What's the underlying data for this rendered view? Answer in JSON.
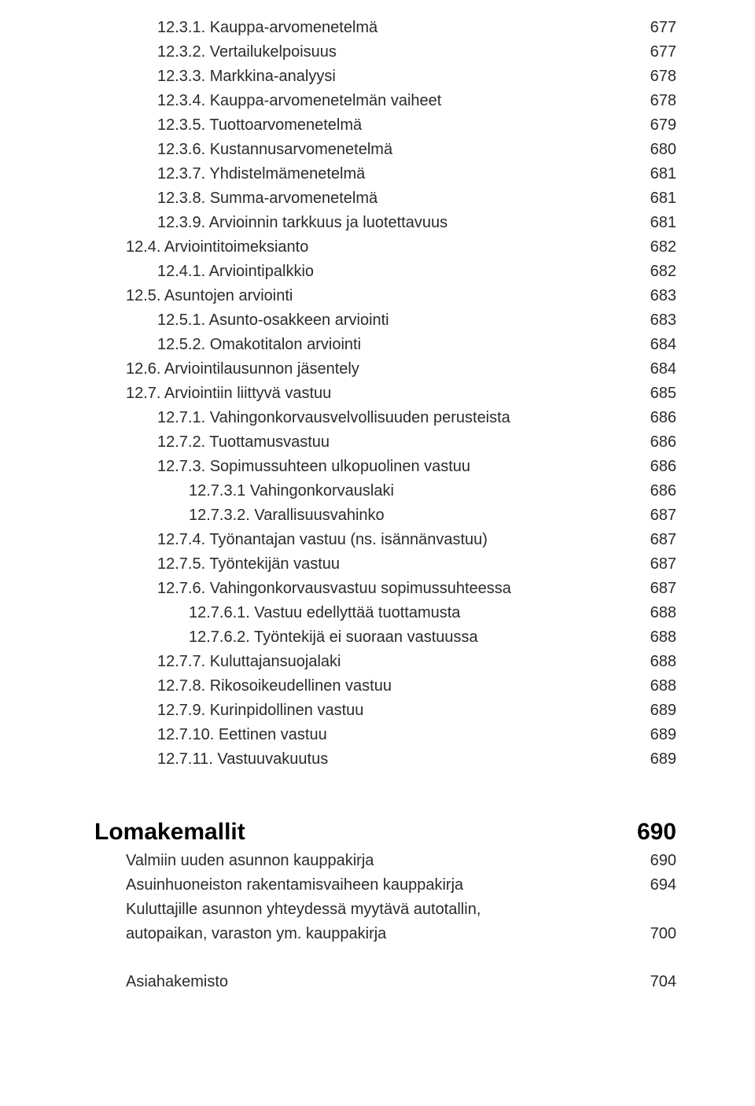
{
  "toc": [
    {
      "indent": 2,
      "label": "12.3.1. Kauppa-arvomenetelmä",
      "page": "677"
    },
    {
      "indent": 2,
      "label": "12.3.2. Vertailukelpoisuus",
      "page": "677"
    },
    {
      "indent": 2,
      "label": "12.3.3. Markkina-analyysi",
      "page": "678"
    },
    {
      "indent": 2,
      "label": "12.3.4. Kauppa-arvomenetelmän vaiheet",
      "page": "678"
    },
    {
      "indent": 2,
      "label": "12.3.5. Tuottoarvomenetelmä",
      "page": "679"
    },
    {
      "indent": 2,
      "label": "12.3.6. Kustannusarvomenetelmä",
      "page": "680"
    },
    {
      "indent": 2,
      "label": "12.3.7. Yhdistelmämenetelmä",
      "page": "681"
    },
    {
      "indent": 2,
      "label": "12.3.8. Summa-arvomenetelmä",
      "page": "681"
    },
    {
      "indent": 2,
      "label": "12.3.9. Arvioinnin tarkkuus ja luotettavuus",
      "page": "681"
    },
    {
      "indent": 1,
      "label": "12.4. Arviointitoimeksianto",
      "page": "682"
    },
    {
      "indent": 2,
      "label": "12.4.1. Arviointipalkkio",
      "page": "682"
    },
    {
      "indent": 1,
      "label": "12.5. Asuntojen arviointi",
      "page": "683"
    },
    {
      "indent": 2,
      "label": "12.5.1. Asunto-osakkeen arviointi",
      "page": "683"
    },
    {
      "indent": 2,
      "label": "12.5.2. Omakotitalon arviointi",
      "page": "684"
    },
    {
      "indent": 1,
      "label": "12.6. Arviointilausunnon jäsentely",
      "page": "684"
    },
    {
      "indent": 1,
      "label": "12.7. Arviointiin liittyvä vastuu",
      "page": "685"
    },
    {
      "indent": 2,
      "label": "12.7.1. Vahingonkorvausvelvollisuuden perusteista",
      "page": "686"
    },
    {
      "indent": 2,
      "label": "12.7.2. Tuottamusvastuu",
      "page": "686"
    },
    {
      "indent": 2,
      "label": "12.7.3. Sopimussuhteen ulkopuolinen vastuu",
      "page": "686"
    },
    {
      "indent": 3,
      "label": "12.7.3.1 Vahingonkorvauslaki",
      "page": "686"
    },
    {
      "indent": 3,
      "label": "12.7.3.2. Varallisuusvahinko",
      "page": "687"
    },
    {
      "indent": 2,
      "label": "12.7.4. Työnantajan vastuu (ns. isännänvastuu)",
      "page": "687"
    },
    {
      "indent": 2,
      "label": "12.7.5. Työntekijän vastuu",
      "page": "687"
    },
    {
      "indent": 2,
      "label": "12.7.6. Vahingonkorvausvastuu sopimussuhteessa",
      "page": "687"
    },
    {
      "indent": 3,
      "label": "12.7.6.1. Vastuu edellyttää tuottamusta",
      "page": "688"
    },
    {
      "indent": 3,
      "label": "12.7.6.2. Työntekijä ei suoraan vastuussa",
      "page": "688"
    },
    {
      "indent": 2,
      "label": "12.7.7. Kuluttajansuojalaki",
      "page": "688"
    },
    {
      "indent": 2,
      "label": "12.7.8. Rikosoikeudellinen vastuu",
      "page": "688"
    },
    {
      "indent": 2,
      "label": "12.7.9. Kurinpidollinen vastuu",
      "page": "689"
    },
    {
      "indent": 2,
      "label": "12.7.10. Eettinen vastuu",
      "page": "689"
    },
    {
      "indent": 2,
      "label": "12.7.11. Vastuuvakuutus",
      "page": "689"
    }
  ],
  "section_heading": {
    "label": "Lomakemallit",
    "page": "690"
  },
  "section_entries": [
    {
      "indent": 1,
      "label": "Valmiin uuden asunnon kauppakirja",
      "page": "690"
    },
    {
      "indent": 1,
      "label": "Asuinhuoneiston rakentamisvaiheen kauppakirja",
      "page": "694"
    },
    {
      "indent": 1,
      "label": "Kuluttajille asunnon yhteydessä myytävä autotallin,",
      "page": ""
    },
    {
      "indent": 1,
      "label": "autopaikan, varaston ym. kauppakirja",
      "page": "700"
    }
  ],
  "final_entry": {
    "indent": 1,
    "label": "Asiahakemisto",
    "page": "704"
  }
}
